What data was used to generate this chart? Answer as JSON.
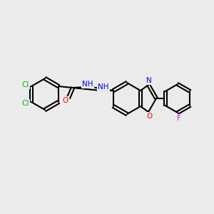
{
  "background_color": "#ebebeb",
  "bond_color": "#000000",
  "bond_width": 1.5,
  "colors": {
    "Cl": "#00bb00",
    "N": "#0000ff",
    "O": "#ff0000",
    "F": "#ff00ff",
    "C": "#000000"
  },
  "font_size": 7.5
}
